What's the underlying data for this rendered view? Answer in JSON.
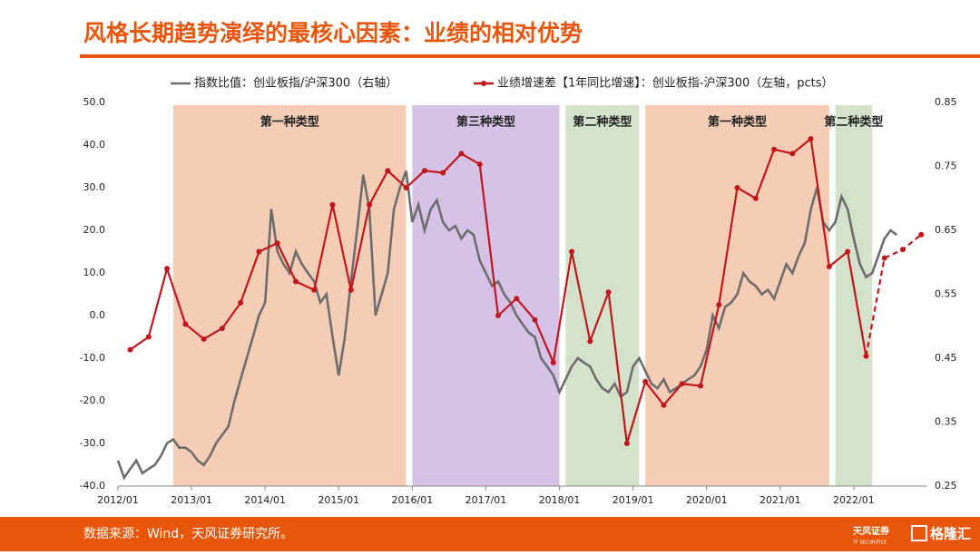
{
  "header": {
    "title": "风格长期趋势演绎的最核心因素：业绩的相对优势"
  },
  "footer": {
    "source": "数据来源：Wind，天风证券研究所。",
    "logo1": "天风证券",
    "logo1_sub": "TF SECURITIES",
    "logo2": "格隆汇"
  },
  "chart_data": {
    "type": "line",
    "xlim": [
      "2012/01",
      "2023/01"
    ],
    "xticks": [
      "2012/01",
      "2013/01",
      "2014/01",
      "2015/01",
      "2016/01",
      "2017/01",
      "2018/01",
      "2019/01",
      "2020/01",
      "2021/01",
      "2022/01"
    ],
    "ylim": [
      -40,
      50
    ],
    "yticks": [
      {
        "value": 50,
        "label": "50.0"
      },
      {
        "value": 40,
        "label": "40.0"
      },
      {
        "value": 30,
        "label": "30.0"
      },
      {
        "value": 20,
        "label": "20.0"
      },
      {
        "value": 10,
        "label": "10.0"
      },
      {
        "value": 0,
        "label": "0.0"
      },
      {
        "value": -10,
        "label": "-10.0"
      },
      {
        "value": -20,
        "label": "-20.0"
      },
      {
        "value": -30,
        "label": "-30.0"
      },
      {
        "value": -40,
        "label": "-40.0"
      }
    ],
    "y2lim": [
      0.25,
      0.85
    ],
    "y2ticks": [
      0.85,
      0.75,
      0.65,
      0.55,
      0.45,
      0.35,
      0.25
    ],
    "regions": [
      {
        "label": "第一种类型",
        "start": "2012/10",
        "end": "2015/12",
        "color": "#f5cdb6"
      },
      {
        "label": "第三种类型",
        "start": "2016/01",
        "end": "2018/01",
        "color": "#d6c2e6"
      },
      {
        "label": "第二种类型",
        "start": "2018/02",
        "end": "2019/02",
        "color": "#d4e2cc"
      },
      {
        "label": "第一种类型",
        "start": "2019/03",
        "end": "2021/09",
        "color": "#f5cdb6"
      },
      {
        "label": "第二种类型",
        "start": "2021/10",
        "end": "2022/04",
        "color": "#d4e2cc"
      }
    ],
    "series": [
      {
        "name": "指数比值：创业板指/沪深300（右轴）",
        "color": "#6d6d6d",
        "axis": "y2",
        "x": [
          "2012/01",
          "2012/02",
          "2012/03",
          "2012/04",
          "2012/05",
          "2012/06",
          "2012/07",
          "2012/08",
          "2012/09",
          "2012/10",
          "2012/11",
          "2012/12",
          "2013/01",
          "2013/02",
          "2013/03",
          "2013/04",
          "2013/05",
          "2013/06",
          "2013/07",
          "2013/08",
          "2013/09",
          "2013/10",
          "2013/11",
          "2013/12",
          "2014/01",
          "2014/02",
          "2014/03",
          "2014/04",
          "2014/05",
          "2014/06",
          "2014/07",
          "2014/08",
          "2014/09",
          "2014/10",
          "2014/11",
          "2014/12",
          "2015/01",
          "2015/02",
          "2015/03",
          "2015/04",
          "2015/05",
          "2015/06",
          "2015/07",
          "2015/08",
          "2015/09",
          "2015/10",
          "2015/11",
          "2015/12",
          "2016/01",
          "2016/02",
          "2016/03",
          "2016/04",
          "2016/05",
          "2016/06",
          "2016/07",
          "2016/08",
          "2016/09",
          "2016/10",
          "2016/11",
          "2016/12",
          "2017/01",
          "2017/02",
          "2017/03",
          "2017/04",
          "2017/05",
          "2017/06",
          "2017/07",
          "2017/08",
          "2017/09",
          "2017/10",
          "2017/11",
          "2017/12",
          "2018/01",
          "2018/02",
          "2018/03",
          "2018/04",
          "2018/05",
          "2018/06",
          "2018/07",
          "2018/08",
          "2018/09",
          "2018/10",
          "2018/11",
          "2018/12",
          "2019/01",
          "2019/02",
          "2019/03",
          "2019/04",
          "2019/05",
          "2019/06",
          "2019/07",
          "2019/08",
          "2019/09",
          "2019/10",
          "2019/11",
          "2019/12",
          "2020/01",
          "2020/02",
          "2020/03",
          "2020/04",
          "2020/05",
          "2020/06",
          "2020/07",
          "2020/08",
          "2020/09",
          "2020/10",
          "2020/11",
          "2020/12",
          "2021/01",
          "2021/02",
          "2021/03",
          "2021/04",
          "2021/05",
          "2021/06",
          "2021/07",
          "2021/08",
          "2021/09",
          "2021/10",
          "2021/11",
          "2021/12",
          "2022/01",
          "2022/02",
          "2022/03",
          "2022/04",
          "2022/05",
          "2022/06",
          "2022/07",
          "2022/08"
        ],
        "values": [
          0.29,
          0.263,
          0.277,
          0.29,
          0.27,
          0.277,
          0.283,
          0.297,
          0.317,
          0.323,
          0.31,
          0.31,
          0.303,
          0.29,
          0.283,
          0.297,
          0.317,
          0.33,
          0.343,
          0.383,
          0.417,
          0.45,
          0.483,
          0.517,
          0.537,
          0.683,
          0.617,
          0.597,
          0.583,
          0.617,
          0.597,
          0.583,
          0.57,
          0.537,
          0.55,
          0.483,
          0.423,
          0.483,
          0.57,
          0.65,
          0.737,
          0.683,
          0.517,
          0.55,
          0.583,
          0.683,
          0.717,
          0.743,
          0.663,
          0.69,
          0.65,
          0.683,
          0.697,
          0.663,
          0.65,
          0.657,
          0.637,
          0.65,
          0.643,
          0.603,
          0.583,
          0.563,
          0.57,
          0.55,
          0.537,
          0.517,
          0.503,
          0.49,
          0.483,
          0.45,
          0.437,
          0.423,
          0.397,
          0.417,
          0.437,
          0.45,
          0.443,
          0.437,
          0.417,
          0.403,
          0.397,
          0.41,
          0.39,
          0.397,
          0.437,
          0.45,
          0.43,
          0.41,
          0.403,
          0.417,
          0.397,
          0.403,
          0.41,
          0.417,
          0.423,
          0.437,
          0.463,
          0.517,
          0.497,
          0.53,
          0.537,
          0.55,
          0.583,
          0.57,
          0.563,
          0.55,
          0.557,
          0.543,
          0.57,
          0.597,
          0.583,
          0.61,
          0.63,
          0.683,
          0.717,
          0.663,
          0.65,
          0.663,
          0.703,
          0.683,
          0.637,
          0.597,
          0.577,
          0.583,
          0.61,
          0.637,
          0.65,
          0.643
        ]
      },
      {
        "name": "业绩增速差【1年同比增速】：创业板指-沪深300（左轴，pcts）",
        "color": "#c0161c",
        "marker": true,
        "dashed_from": "2022/03",
        "x": [
          "2012/03",
          "2012/06",
          "2012/09",
          "2012/12",
          "2013/03",
          "2013/06",
          "2013/09",
          "2013/12",
          "2014/03",
          "2014/06",
          "2014/09",
          "2014/12",
          "2015/03",
          "2015/06",
          "2015/09",
          "2015/12",
          "2016/03",
          "2016/06",
          "2016/09",
          "2016/12",
          "2017/03",
          "2017/06",
          "2017/09",
          "2017/12",
          "2018/03",
          "2018/06",
          "2018/09",
          "2018/12",
          "2019/03",
          "2019/06",
          "2019/09",
          "2019/12",
          "2020/03",
          "2020/06",
          "2020/09",
          "2020/12",
          "2021/03",
          "2021/06",
          "2021/09",
          "2021/12",
          "2022/03",
          "2022/06",
          "2022/09",
          "2022/12"
        ],
        "values": [
          -8,
          -5,
          11,
          -2,
          -5.5,
          -3,
          3,
          15,
          17,
          8,
          6,
          26,
          6,
          26,
          34,
          30,
          34,
          33.5,
          38,
          35.5,
          0,
          4,
          -1,
          -11,
          15,
          -6,
          5.5,
          -30,
          -15.5,
          -21,
          -16,
          -16.5,
          2.5,
          30,
          27.5,
          39,
          38,
          41.5,
          11.5,
          15,
          -9.5,
          13.5,
          15.5,
          19
        ]
      }
    ]
  }
}
